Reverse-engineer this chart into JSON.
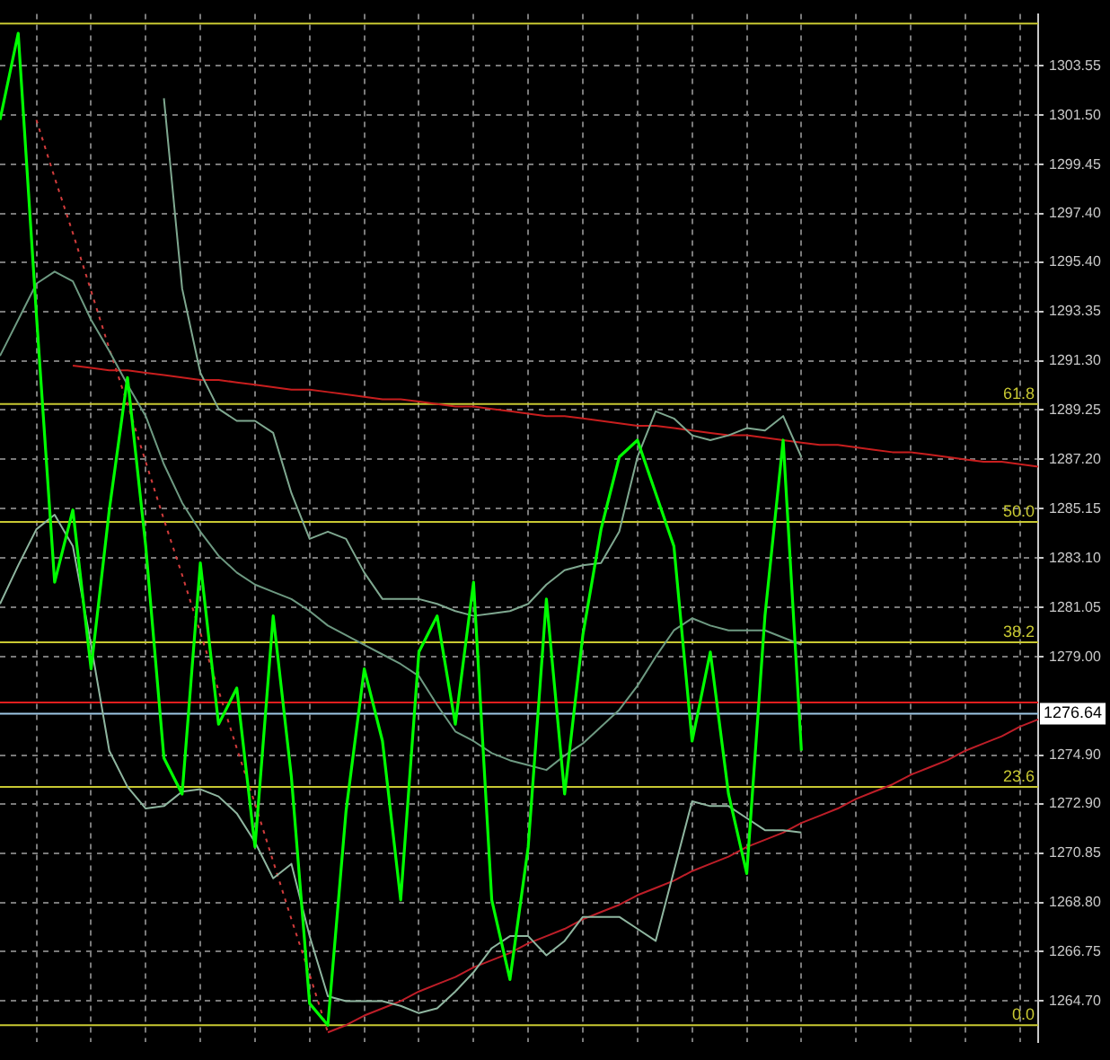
{
  "chart_data": {
    "type": "line",
    "categories": [
      null,
      null,
      null,
      null,
      null,
      null,
      null,
      null,
      null,
      null,
      null,
      null,
      null,
      null,
      null,
      null,
      null,
      null,
      null,
      null,
      null,
      null,
      null,
      null,
      null,
      null,
      null,
      null,
      null,
      null,
      null,
      null,
      null,
      null,
      null,
      null,
      null,
      null,
      null,
      null,
      null,
      null,
      null,
      null,
      null,
      null,
      null,
      null,
      null,
      null,
      null,
      null,
      null,
      null,
      null,
      null,
      null,
      null
    ],
    "ylim": [
      1263.0,
      1305.7
    ],
    "yticks": [
      1303.55,
      {
        "value": 1301.5,
        "label": "1301.50"
      },
      1299.45,
      {
        "value": 1297.4,
        "label": "1297.40"
      },
      {
        "value": 1295.4,
        "label": "1295.40"
      },
      1293.35,
      {
        "value": 1291.3,
        "label": "1291.30"
      },
      1289.25,
      {
        "value": 1287.2,
        "label": "1287.20"
      },
      1285.15,
      {
        "value": 1283.1,
        "label": "1283.10"
      },
      1281.05,
      {
        "value": 1279.0,
        "label": "1279.00"
      },
      {
        "value": 1274.9,
        "label": "1274.90"
      },
      {
        "value": 1272.9,
        "label": "1272.90"
      },
      1270.85,
      {
        "value": 1268.8,
        "label": "1268.80"
      },
      1266.75,
      {
        "value": 1264.7,
        "label": "1264.70"
      }
    ],
    "tick_labels": "y",
    "grid": true,
    "legend": false,
    "marker": "none",
    "series": [
      {
        "color": "#00ff00",
        "values": [
          1301.3,
          1304.9,
          1293.2,
          1282.1,
          1285.1,
          1278.5,
          1285.1,
          1290.6,
          1283.6,
          1274.8,
          1273.3,
          1282.9,
          1276.2,
          1277.7,
          1271.1,
          1280.7,
          1274.0,
          1264.6,
          1263.7,
          1272.6,
          1278.5,
          1275.5,
          1268.9,
          1279.2,
          1280.7,
          1276.2,
          1282.1,
          1268.9,
          1265.6,
          1271.1,
          1281.4,
          1273.3,
          1279.9,
          1284.3,
          1287.3,
          1288.0,
          1285.8,
          1283.6,
          1275.5,
          1279.2,
          1273.3,
          1270.0,
          1280.7,
          1288.0,
          1275.1,
          null,
          null,
          null,
          null,
          null,
          null,
          null,
          null,
          null,
          null,
          null,
          null,
          null
        ]
      },
      {
        "color": "#7fa890",
        "values": [
          null,
          null,
          null,
          null,
          null,
          null,
          null,
          null,
          null,
          1302.2,
          1294.3,
          1290.8,
          1289.3,
          1288.8,
          1288.8,
          1288.3,
          1285.8,
          1283.9,
          1284.2,
          1283.9,
          1282.5,
          1281.4,
          1281.4,
          1281.4,
          1281.2,
          1280.9,
          1280.7,
          1280.8,
          1280.9,
          1281.2,
          1282.0,
          1282.6,
          1282.8,
          1282.9,
          1284.2,
          1287.3,
          1289.2,
          1288.9,
          1288.2,
          1288.0,
          1288.2,
          1288.5,
          1288.4,
          1289.0,
          1287.3,
          null,
          null,
          null,
          null,
          null,
          null,
          null,
          null,
          null,
          null,
          null,
          null,
          null
        ]
      },
      {
        "color": "#6e9a82",
        "values": [
          1291.5,
          1293.0,
          1294.5,
          1295.0,
          1294.6,
          1293.0,
          1291.7,
          1290.3,
          1289.0,
          1287.0,
          1285.4,
          1284.2,
          1283.2,
          1282.5,
          1282.0,
          1281.7,
          1281.4,
          1280.9,
          1280.3,
          1279.9,
          1279.5,
          1279.1,
          1278.7,
          1278.2,
          1277.0,
          1275.9,
          1275.5,
          1275.0,
          1274.7,
          1274.5,
          1274.3,
          1274.9,
          1275.4,
          1276.1,
          1276.8,
          1277.8,
          1279.0,
          1280.1,
          1280.6,
          1280.3,
          1280.1,
          1280.1,
          1280.1,
          1279.8,
          1279.5,
          null,
          null,
          null,
          null,
          null,
          null,
          null,
          null,
          null,
          null,
          null,
          null,
          null
        ]
      },
      {
        "color": "#8fb6a0",
        "values": [
          1281.2,
          1282.8,
          1284.3,
          1284.9,
          1283.6,
          1279.5,
          1275.1,
          1273.6,
          1272.7,
          1272.8,
          1273.4,
          1273.5,
          1273.2,
          1272.5,
          1271.3,
          1269.8,
          1270.4,
          1267.4,
          1264.9,
          1264.7,
          1264.7,
          1264.7,
          1264.5,
          1264.2,
          1264.4,
          1265.1,
          1265.9,
          1266.9,
          1267.4,
          1267.4,
          1266.6,
          1267.2,
          1268.2,
          1268.2,
          1268.2,
          1267.7,
          1267.2,
          1270.1,
          1273.0,
          1272.8,
          1272.8,
          1272.3,
          1271.8,
          1271.8,
          1271.7,
          null,
          null,
          null,
          null,
          null,
          null,
          null,
          null,
          null,
          null,
          null,
          null,
          null
        ]
      },
      {
        "color": "#c81e1e",
        "values": [
          null,
          null,
          null,
          null,
          1291.1,
          1291.0,
          1290.9,
          1290.9,
          1290.8,
          1290.7,
          1290.6,
          1290.5,
          1290.5,
          1290.4,
          1290.3,
          1290.2,
          1290.1,
          1290.1,
          1290.0,
          1289.9,
          1289.8,
          1289.7,
          1289.7,
          1289.6,
          1289.5,
          1289.4,
          1289.4,
          1289.3,
          1289.2,
          1289.1,
          1289.0,
          1289.0,
          1288.9,
          1288.8,
          1288.7,
          1288.6,
          1288.6,
          1288.5,
          1288.4,
          1288.3,
          1288.2,
          1288.2,
          1288.1,
          1288.0,
          1287.9,
          1287.8,
          1287.8,
          1287.7,
          1287.6,
          1287.5,
          1287.5,
          1287.4,
          1287.3,
          1287.2,
          1287.1,
          1287.1,
          1287.0,
          1286.9
        ]
      },
      {
        "color": "#d23c3c",
        "line_style": "dotted",
        "values": [
          null,
          null,
          1301.3,
          1298.9,
          1296.6,
          1294.2,
          1291.8,
          1289.5,
          1287.1,
          1284.7,
          1282.4,
          1280.0,
          1277.6,
          1275.2,
          1272.9,
          1270.5,
          1268.1,
          1265.8,
          1263.4,
          null,
          null,
          null,
          null,
          null,
          null,
          null,
          null,
          null,
          null,
          null,
          null,
          null,
          null,
          null,
          null,
          null,
          null,
          null,
          null,
          null,
          null,
          null,
          null,
          null,
          null,
          null,
          null,
          null,
          null,
          null,
          null,
          null,
          null,
          null,
          null,
          null,
          null,
          null
        ]
      },
      {
        "color": "#be1e28",
        "values": [
          null,
          null,
          null,
          null,
          null,
          null,
          null,
          null,
          null,
          null,
          null,
          null,
          null,
          null,
          null,
          null,
          null,
          null,
          1263.4,
          1263.7,
          1264.1,
          1264.4,
          1264.7,
          1265.1,
          1265.4,
          1265.7,
          1266.1,
          1266.4,
          1266.7,
          1267.1,
          1267.4,
          1267.7,
          1268.1,
          1268.4,
          1268.7,
          1269.1,
          1269.4,
          1269.7,
          1270.1,
          1270.4,
          1270.7,
          1271.1,
          1271.4,
          1271.7,
          1272.1,
          1272.4,
          1272.7,
          1273.1,
          1273.4,
          1273.7,
          1274.1,
          1274.4,
          1274.7,
          1275.1,
          1275.4,
          1275.7,
          1276.1,
          1276.4
        ]
      }
    ],
    "ref_lines": [
      {
        "axis": "y",
        "value": 1305.3,
        "color": "#c8c832"
      },
      {
        "axis": "y",
        "value": 1289.5,
        "color": "#c8c832"
      },
      {
        "axis": "y",
        "value": 1284.6,
        "color": "#c8c832"
      },
      {
        "axis": "y",
        "value": 1279.6,
        "color": "#c8c832"
      },
      {
        "axis": "y",
        "value": 1273.6,
        "color": "#c8c832"
      },
      {
        "axis": "y",
        "value": 1263.7,
        "color": "#c8c832"
      },
      {
        "axis": "y",
        "value": 1277.1,
        "color": "#e01e1e"
      },
      {
        "axis": "y",
        "value": 1276.64,
        "label": "1276.64",
        "color": "#9ec8e6"
      }
    ],
    "annotations": [
      {
        "text": "61.8",
        "y": 1289.5
      },
      {
        "text": "50.0",
        "y": 1284.6
      },
      {
        "text": "38.2",
        "y": 1279.6
      },
      {
        "text": "23.6",
        "y": 1273.6
      },
      {
        "text": "0.0",
        "y": 1263.7
      }
    ]
  }
}
